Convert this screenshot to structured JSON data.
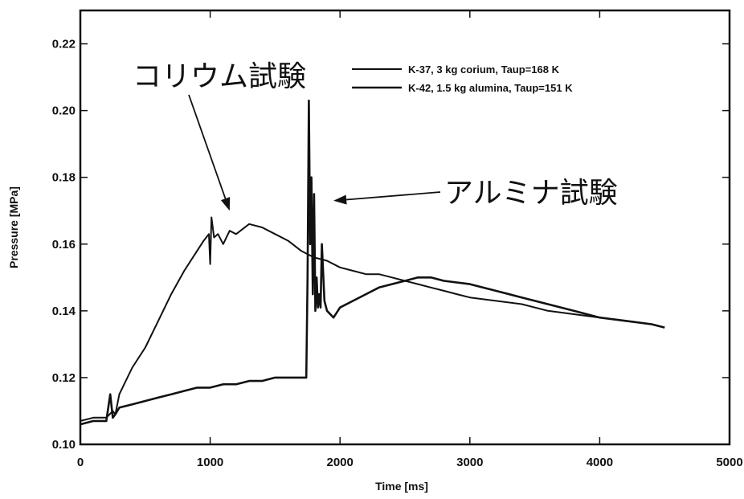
{
  "chart_data": {
    "type": "line",
    "title": "",
    "xlabel": "Time [ms]",
    "ylabel": "Pressure [MPa]",
    "xlim": [
      0,
      5000
    ],
    "ylim": [
      0.1,
      0.23
    ],
    "x_ticks": [
      0,
      1000,
      2000,
      3000,
      4000,
      5000
    ],
    "x_tick_labels": [
      "0",
      "1000",
      "2000",
      "3000",
      "4000",
      "5000"
    ],
    "y_ticks": [
      0.1,
      0.12,
      0.14,
      0.16,
      0.18,
      0.2,
      0.22
    ],
    "y_tick_labels": [
      "0.10",
      "0.12",
      "0.14",
      "0.16",
      "0.18",
      "0.20",
      "0.22"
    ],
    "grid": false,
    "legend_position": "top-right",
    "series": [
      {
        "name": "K-37, 3 kg corium, Taup=168 K",
        "color": "#111111",
        "x": [
          0,
          100,
          200,
          250,
          270,
          300,
          400,
          500,
          600,
          700,
          800,
          900,
          950,
          990,
          1000,
          1010,
          1030,
          1060,
          1100,
          1150,
          1200,
          1300,
          1400,
          1500,
          1600,
          1700,
          1800,
          1900,
          2000,
          2100,
          2200,
          2300,
          2400,
          2500,
          2600,
          2700,
          2800,
          2900,
          3000,
          3200,
          3400,
          3600,
          3800,
          4000,
          4200,
          4400,
          4500
        ],
        "y": [
          0.107,
          0.108,
          0.108,
          0.11,
          0.109,
          0.115,
          0.123,
          0.129,
          0.137,
          0.145,
          0.152,
          0.158,
          0.161,
          0.163,
          0.154,
          0.168,
          0.162,
          0.163,
          0.16,
          0.164,
          0.163,
          0.166,
          0.165,
          0.163,
          0.161,
          0.158,
          0.156,
          0.155,
          0.153,
          0.152,
          0.151,
          0.151,
          0.15,
          0.149,
          0.148,
          0.147,
          0.146,
          0.145,
          0.144,
          0.143,
          0.142,
          0.14,
          0.139,
          0.138,
          0.137,
          0.136,
          0.135
        ]
      },
      {
        "name": "K-42, 1.5 kg alumina, Taup=151 K",
        "color": "#111111",
        "x": [
          0,
          100,
          200,
          230,
          250,
          270,
          300,
          400,
          500,
          600,
          700,
          800,
          900,
          1000,
          1100,
          1200,
          1300,
          1400,
          1500,
          1600,
          1700,
          1740,
          1750,
          1760,
          1770,
          1780,
          1790,
          1800,
          1810,
          1820,
          1830,
          1840,
          1850,
          1860,
          1880,
          1900,
          1950,
          2000,
          2100,
          2200,
          2300,
          2400,
          2500,
          2600,
          2700,
          2800,
          3000,
          3200,
          3400,
          3600,
          3800,
          4000,
          4200,
          4400,
          4500
        ],
        "y": [
          0.106,
          0.107,
          0.107,
          0.115,
          0.108,
          0.109,
          0.111,
          0.112,
          0.113,
          0.114,
          0.115,
          0.116,
          0.117,
          0.117,
          0.118,
          0.118,
          0.119,
          0.119,
          0.12,
          0.12,
          0.12,
          0.12,
          0.15,
          0.203,
          0.16,
          0.18,
          0.145,
          0.175,
          0.14,
          0.15,
          0.141,
          0.145,
          0.141,
          0.16,
          0.143,
          0.14,
          0.138,
          0.141,
          0.143,
          0.145,
          0.147,
          0.148,
          0.149,
          0.15,
          0.15,
          0.149,
          0.148,
          0.146,
          0.144,
          0.142,
          0.14,
          0.138,
          0.137,
          0.136,
          0.135
        ]
      }
    ],
    "annotations": [
      {
        "text": "コリウム試験",
        "target_x": 1150,
        "target_y": 0.17
      },
      {
        "text": "アルミナ試験",
        "target_x": 1950,
        "target_y": 0.173
      }
    ]
  }
}
